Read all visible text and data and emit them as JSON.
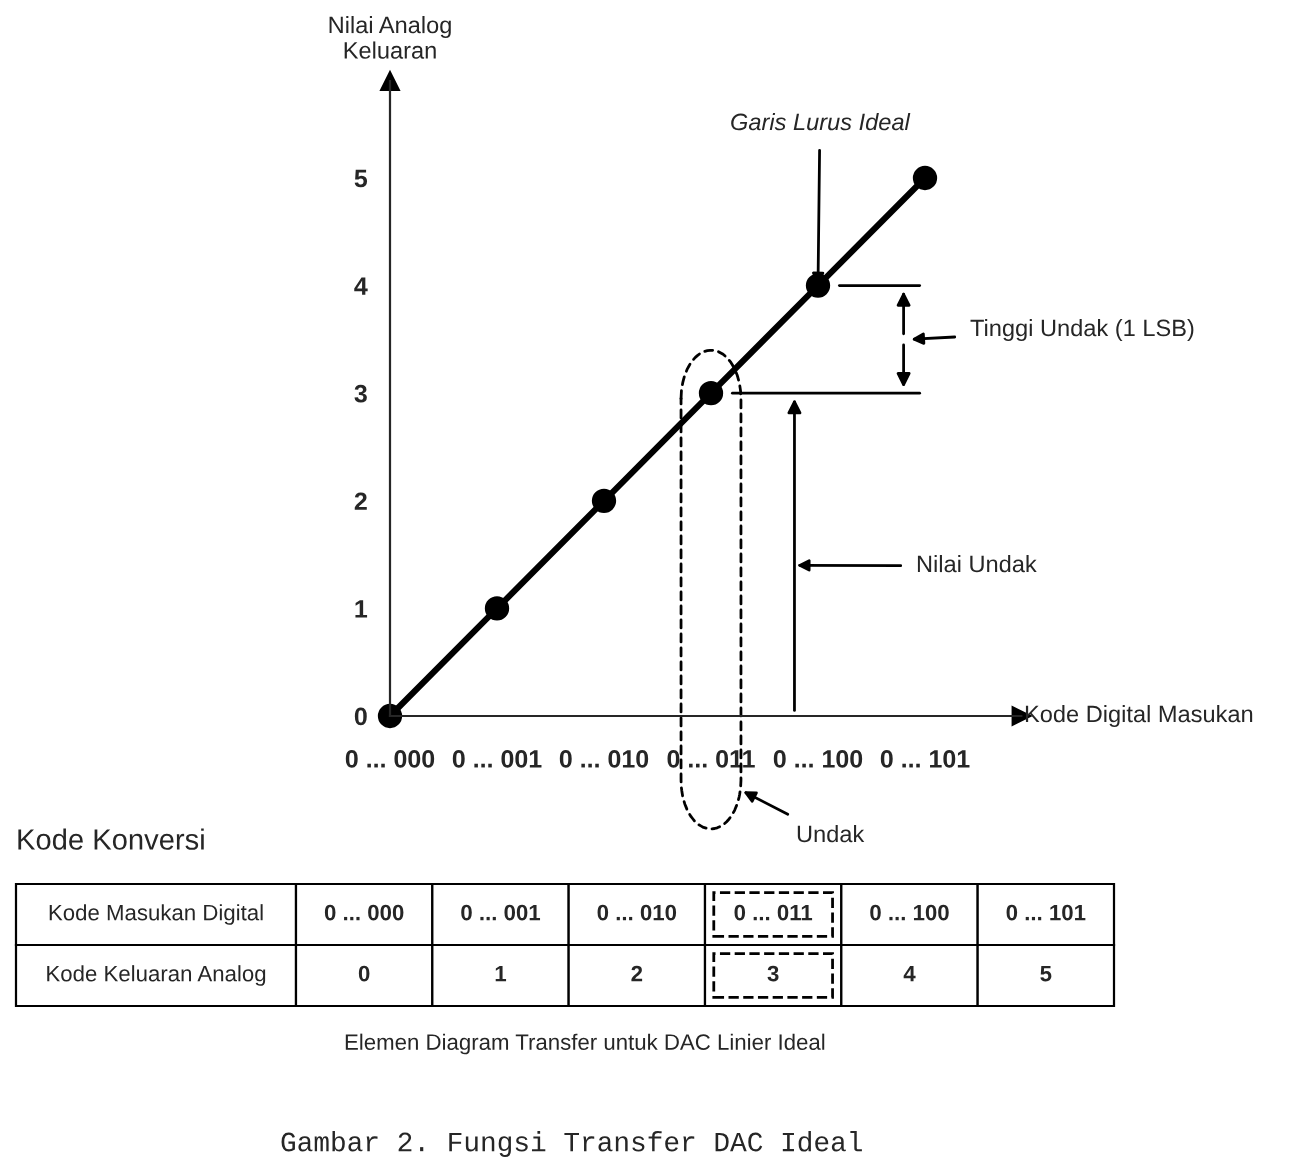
{
  "chart_data": {
    "type": "line",
    "xlabel": "Kode Digital Masukan",
    "ylabel": "Nilai Analog\nKeluaran",
    "categories": [
      "0 ... 000",
      "0 ... 001",
      "0 ... 010",
      "0 ... 011",
      "0 ... 100",
      "0 ... 101"
    ],
    "series": [
      {
        "color": "#000000",
        "values": [
          0,
          1,
          2,
          3,
          4,
          5
        ]
      }
    ],
    "ylim": [
      0,
      5.9
    ],
    "yticks": [
      0,
      1,
      2,
      3,
      4,
      5
    ],
    "marker": "circle",
    "line_style": "solid",
    "grid": false,
    "legend": false,
    "annotations": [
      {
        "text": "Garis Lurus Ideal",
        "x": "0 ... 100",
        "y": 4
      },
      "Tinggi Undak (1 LSB)",
      "Nilai Undak",
      "Undak",
      "Kode Konversi",
      "Kode Masukan Digital",
      "Kode Keluaran Analog",
      "Elemen Diagram Transfer untuk DAC Linier Ideal",
      "Gambar 2. Fungsi Transfer DAC Ideal",
      "0",
      "1",
      "2",
      "3",
      "4",
      "5"
    ]
  }
}
